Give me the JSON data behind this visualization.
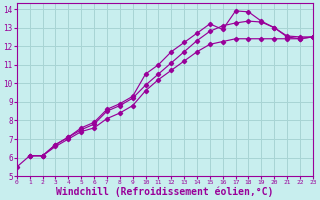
{
  "background_color": "#c8eeee",
  "grid_color": "#a8d4d4",
  "line_color": "#990099",
  "xlim": [
    0,
    23
  ],
  "ylim": [
    5,
    14.3
  ],
  "xlabel": "Windchill (Refroidissement éolien,°C)",
  "xlabel_fontsize": 7,
  "xticks": [
    0,
    1,
    2,
    3,
    4,
    5,
    6,
    7,
    8,
    9,
    10,
    11,
    12,
    13,
    14,
    15,
    16,
    17,
    18,
    19,
    20,
    21,
    22,
    23
  ],
  "yticks": [
    5,
    6,
    7,
    8,
    9,
    10,
    11,
    12,
    13,
    14
  ],
  "curve_bottom_x": [
    0,
    1,
    2,
    3,
    4,
    5,
    6,
    7,
    8,
    9,
    10,
    11,
    12,
    13,
    14,
    15,
    16,
    17,
    18,
    19,
    20,
    21,
    22,
    23
  ],
  "curve_bottom_y": [
    5.5,
    6.1,
    6.1,
    6.6,
    7.0,
    7.4,
    7.6,
    8.1,
    8.4,
    8.8,
    9.6,
    10.2,
    10.7,
    11.2,
    11.7,
    12.1,
    12.25,
    12.4,
    12.4,
    12.4,
    12.4,
    12.4,
    12.4,
    12.5
  ],
  "curve_mid_x": [
    1,
    2,
    3,
    4,
    5,
    6,
    7,
    8,
    9,
    10,
    11,
    12,
    13,
    14,
    15,
    16,
    17,
    18,
    19,
    20,
    21,
    22,
    23
  ],
  "curve_mid_y": [
    6.1,
    6.1,
    6.7,
    7.1,
    7.5,
    7.8,
    8.5,
    8.8,
    9.2,
    9.9,
    10.5,
    11.1,
    11.7,
    12.3,
    12.8,
    13.1,
    13.25,
    13.35,
    13.3,
    13.0,
    12.55,
    12.5,
    12.5
  ],
  "curve_top_x": [
    1,
    2,
    3,
    4,
    5,
    6,
    7,
    8,
    9,
    10,
    11,
    12,
    13,
    14,
    15,
    16,
    17,
    18,
    19,
    20,
    21,
    22,
    23
  ],
  "curve_top_y": [
    6.1,
    6.1,
    6.7,
    7.1,
    7.6,
    7.9,
    8.6,
    8.9,
    9.3,
    10.5,
    11.0,
    11.7,
    12.2,
    12.7,
    13.2,
    12.9,
    13.9,
    13.85,
    13.35,
    13.0,
    12.5,
    12.4,
    12.5
  ]
}
